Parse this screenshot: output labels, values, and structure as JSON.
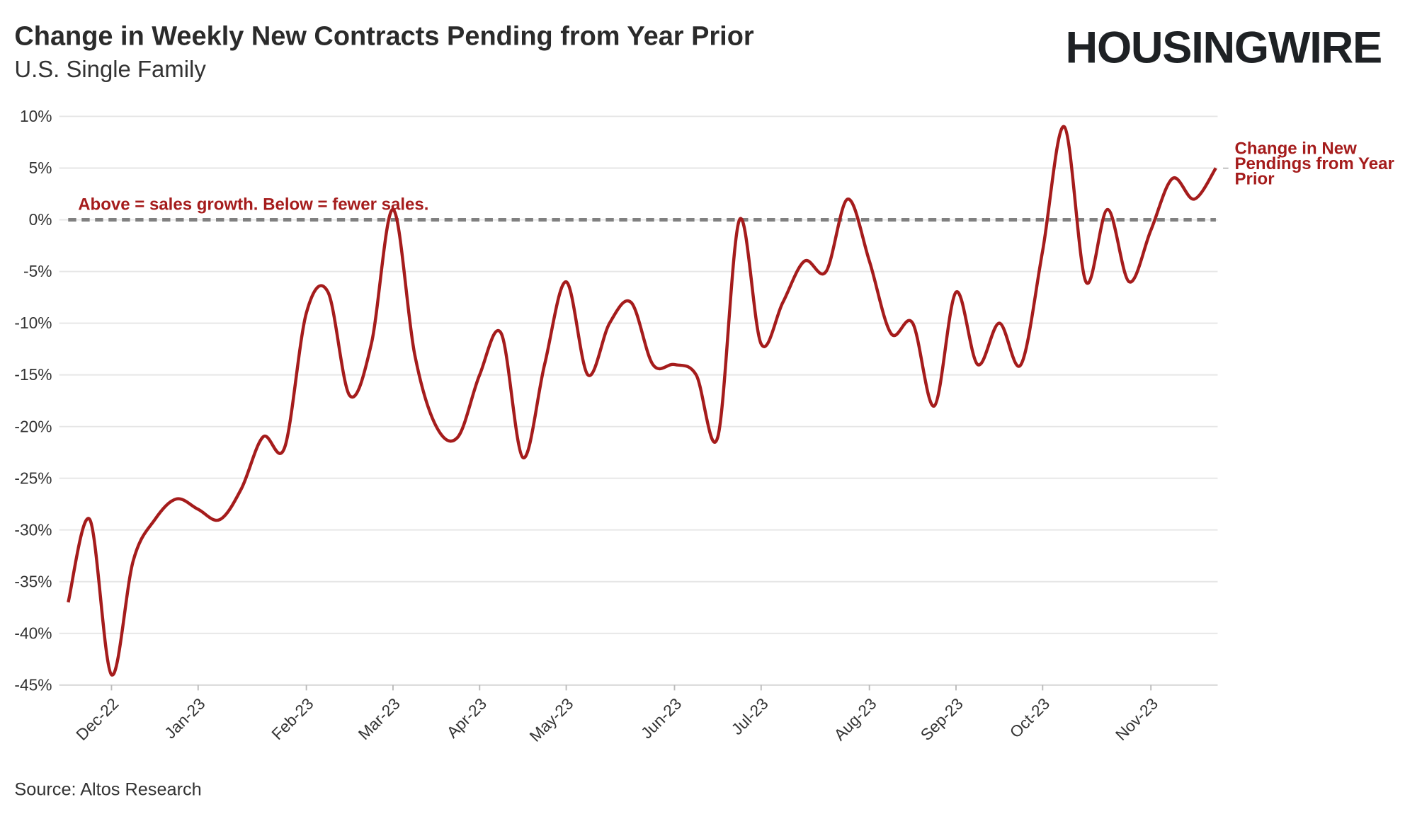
{
  "chart_data": {
    "type": "line",
    "title": "Change in Weekly New Contracts Pending from Year Prior",
    "subtitle": "U.S. Single Family",
    "logo": "HOUSINGWIRE",
    "annotation": "Above = sales growth. Below = fewer sales.",
    "source": "Source: Altos Research",
    "reference_line": 0,
    "grid": true,
    "categories": [
      null,
      null,
      "Dec-22",
      null,
      null,
      null,
      "Jan-23",
      null,
      null,
      null,
      null,
      "Feb-23",
      null,
      null,
      null,
      "Mar-23",
      null,
      null,
      null,
      "Apr-23",
      null,
      null,
      null,
      "May-23",
      null,
      null,
      null,
      null,
      "Jun-23",
      null,
      null,
      null,
      "Jul-23",
      null,
      null,
      null,
      null,
      "Aug-23",
      null,
      null,
      null,
      "Sep-23",
      null,
      null,
      null,
      "Oct-23",
      null,
      null,
      null,
      null,
      "Nov-23",
      null,
      null,
      null
    ],
    "series": [
      {
        "name": "Change in New Pendings from Year Prior",
        "color": "#a51c1c",
        "values": [
          -37,
          -29,
          -44,
          -33,
          -29,
          -27,
          -28,
          -29,
          -26,
          -21,
          -22,
          -9,
          -7,
          -17,
          -12,
          1,
          -13,
          -20,
          -21,
          -15,
          -11,
          -23,
          -14,
          -6,
          -15,
          -10,
          -8,
          -14,
          -14,
          -15,
          -21,
          0,
          -12,
          -8,
          -4,
          -5,
          2,
          -4,
          -11,
          -10,
          -18,
          -7,
          -14,
          -10,
          -14,
          -3,
          9,
          -6,
          1,
          -6,
          -1,
          4,
          2,
          5
        ]
      }
    ],
    "ylim": [
      -45,
      10
    ],
    "yticks": [
      {
        "value": 10,
        "label": "10%"
      },
      {
        "value": 5,
        "label": "5%"
      },
      {
        "value": 0,
        "label": "0%"
      },
      {
        "value": -5,
        "label": "-5%"
      },
      {
        "value": -10,
        "label": "-10%"
      },
      {
        "value": -15,
        "label": "-15%"
      },
      {
        "value": -20,
        "label": "-20%"
      },
      {
        "value": -25,
        "label": "-25%"
      },
      {
        "value": -30,
        "label": "-30%"
      },
      {
        "value": -35,
        "label": "-35%"
      },
      {
        "value": -40,
        "label": "-40%"
      },
      {
        "value": -45,
        "label": "-45%"
      }
    ]
  }
}
